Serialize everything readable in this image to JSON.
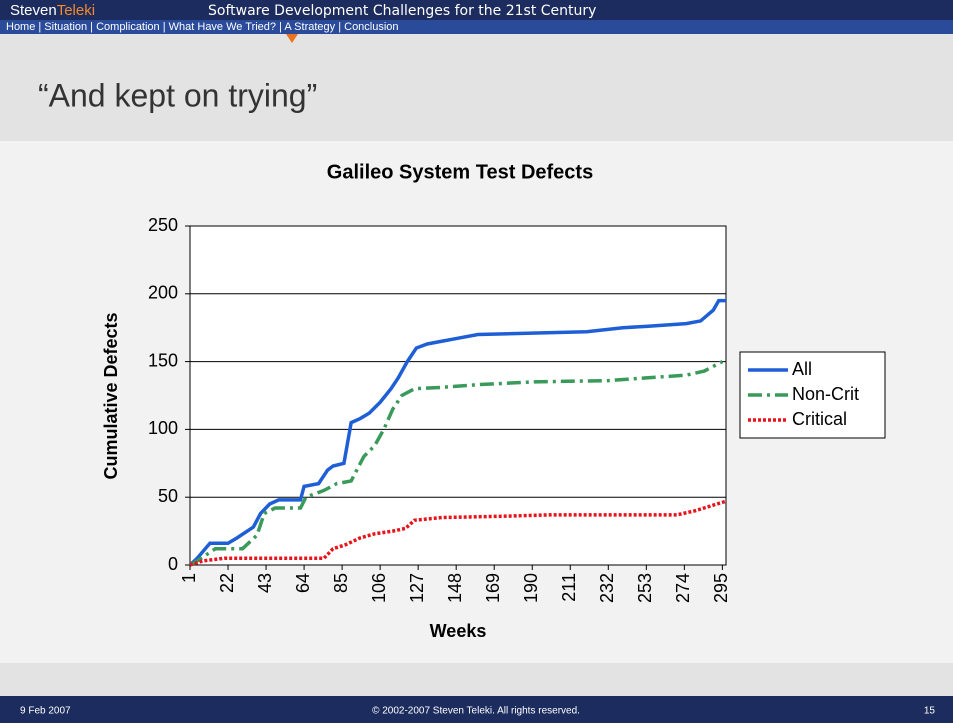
{
  "header": {
    "brand_first": "Steven",
    "brand_second": "Teleki",
    "tagline": "Software Development Challenges for the 21st Century",
    "nav": "Home | Situation | Complication | What Have We Tried? | A Strategy | Conclusion"
  },
  "slide_title": "“And kept on trying”",
  "footer": {
    "date": "9 Feb 2007",
    "copyright": "© 2002-2007 Steven Teleki. All rights reserved.",
    "page": "15"
  },
  "chart_data": {
    "type": "line",
    "title": "Galileo System Test Defects",
    "x_label": "Weeks",
    "y_label": "Cumulative Defects",
    "xlim": [
      1,
      297
    ],
    "ylim": [
      0,
      250
    ],
    "xticks": [
      1,
      22,
      43,
      64,
      85,
      106,
      127,
      148,
      169,
      190,
      211,
      232,
      253,
      274,
      295
    ],
    "yticks": [
      0,
      50,
      100,
      150,
      200,
      250
    ],
    "grid": true,
    "legend": "right",
    "series": [
      {
        "name": "All",
        "color": "#1f5fd6",
        "dash": "solid",
        "x": [
          1,
          5,
          12,
          22,
          27,
          36,
          40,
          45,
          50,
          62,
          64,
          72,
          77,
          80,
          86,
          90,
          95,
          100,
          106,
          112,
          116,
          121,
          126,
          132,
          140,
          148,
          160,
          190,
          220,
          240,
          253,
          275,
          283,
          290,
          293,
          297
        ],
        "values": [
          0,
          5,
          16,
          16,
          20,
          28,
          38,
          45,
          48,
          48,
          58,
          60,
          70,
          73,
          75,
          105,
          108,
          112,
          120,
          130,
          138,
          150,
          160,
          163,
          165,
          167,
          170,
          171,
          172,
          175,
          176,
          178,
          180,
          188,
          195,
          195
        ]
      },
      {
        "name": "Non-Crit",
        "color": "#3a9a5a",
        "dash": "dashdot",
        "x": [
          1,
          5,
          15,
          30,
          38,
          42,
          48,
          62,
          65,
          75,
          82,
          90,
          97,
          103,
          108,
          113,
          118,
          125,
          140,
          160,
          190,
          232,
          253,
          275,
          285,
          295
        ],
        "values": [
          0,
          3,
          12,
          12,
          22,
          38,
          42,
          42,
          50,
          55,
          60,
          62,
          80,
          88,
          100,
          115,
          125,
          130,
          131,
          133,
          135,
          136,
          138,
          140,
          143,
          150
        ]
      },
      {
        "name": "Critical",
        "color": "#e8141b",
        "dash": "dot",
        "x": [
          1,
          8,
          20,
          75,
          80,
          87,
          95,
          103,
          113,
          120,
          125,
          140,
          175,
          200,
          270,
          280,
          292,
          297
        ],
        "values": [
          0,
          3,
          5,
          5,
          12,
          15,
          20,
          23,
          25,
          27,
          33,
          35,
          36,
          37,
          37,
          40,
          45,
          47
        ]
      }
    ]
  }
}
